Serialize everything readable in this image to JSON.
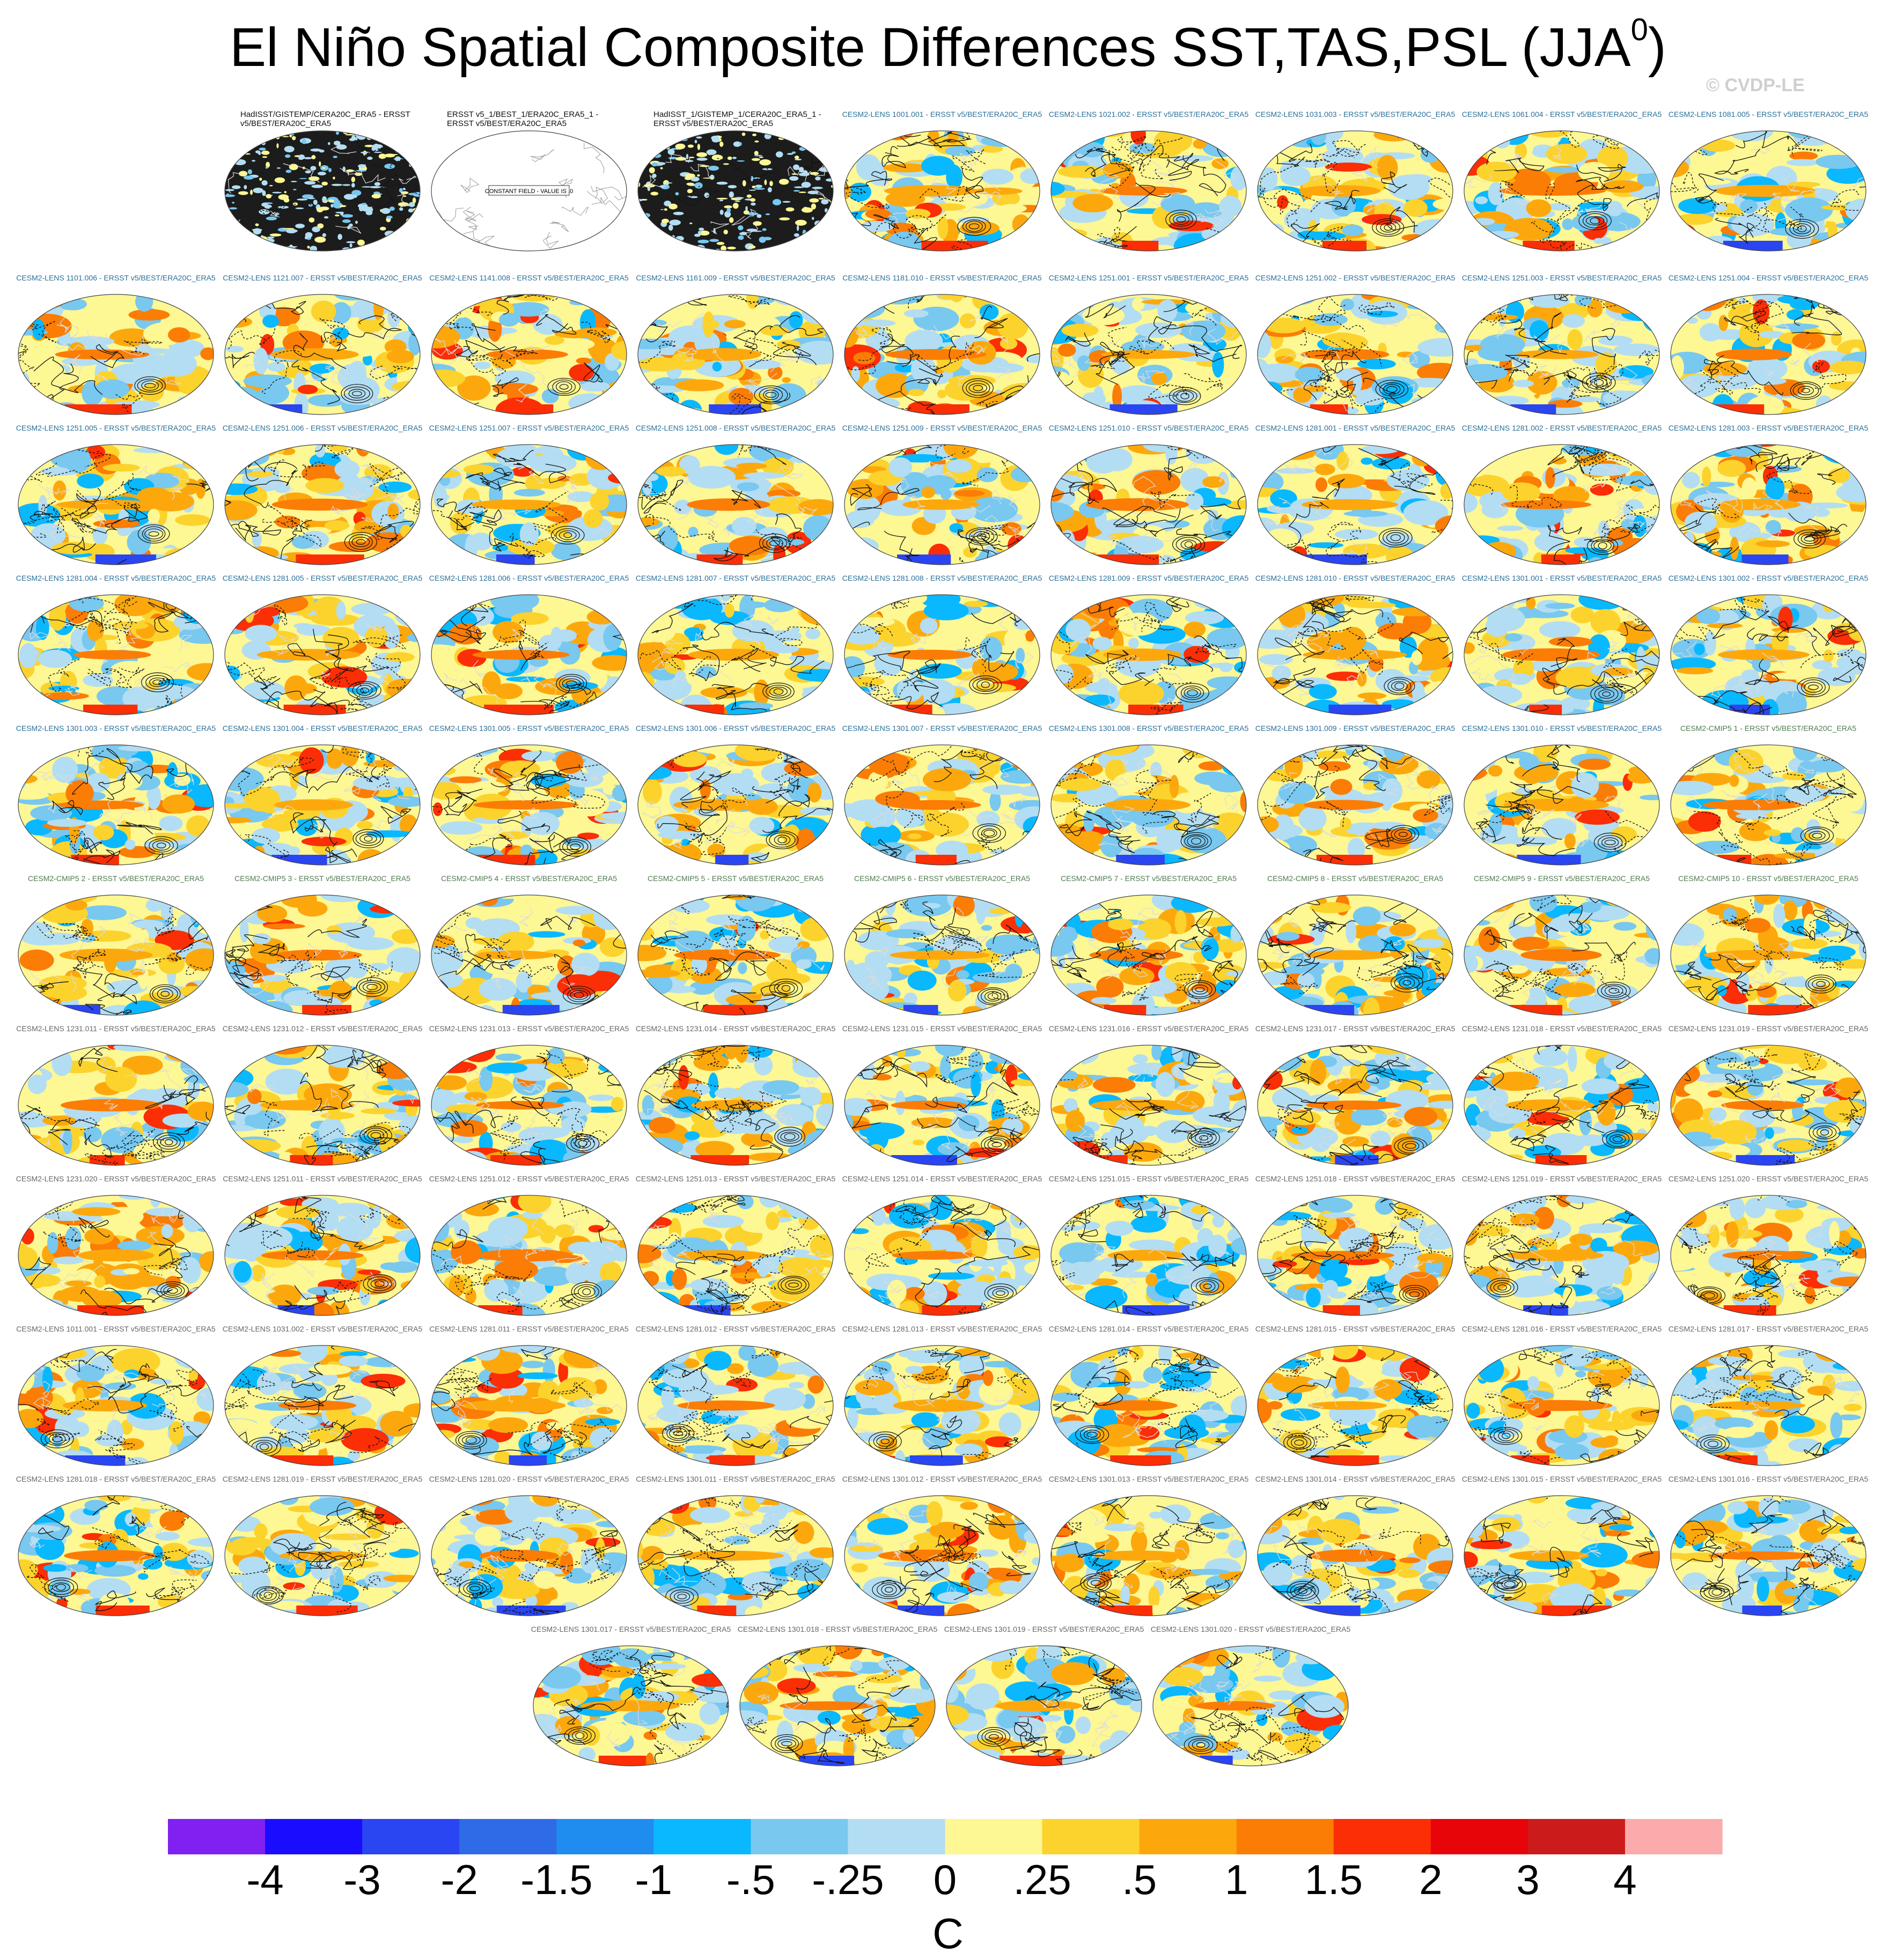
{
  "title_main": "El Niño Spatial Composite Differences SST,TAS,PSL (JJA",
  "title_sup": "0",
  "title_close": ")",
  "watermark": "© CVDP-LE",
  "colors": {
    "background": "#ffffff",
    "coast": "#d9d9d9",
    "contour": "#111111"
  },
  "chart_data": {
    "type": "heatmap",
    "description_units": "C",
    "colorbar": {
      "units": "C",
      "tick_labels": [
        "-4",
        "-3",
        "-2",
        "-1.5",
        "-1",
        "-.5",
        "-.25",
        "0",
        ".25",
        ".5",
        "1",
        "1.5",
        "2",
        "3",
        "4"
      ],
      "colors": [
        "#8021f2",
        "#1a0dff",
        "#2a45f2",
        "#2e6be6",
        "#1f8cf0",
        "#0ab8ff",
        "#78c8f0",
        "#b3ddf2",
        "#fdf794",
        "#fcd22d",
        "#fca80d",
        "#fb7d05",
        "#fb2e05",
        "#e80509",
        "#cc1b1b",
        "#fbabab"
      ]
    },
    "panels": [
      {
        "label": "HadISST/GISTEMP/CERA20C_ERA5 - ERSST v5/BEST/ERA20C_ERA5",
        "style": "obs"
      },
      {
        "label": "ERSST v5_1/BEST_1/ERA20C_ERA5_1 - ERSST v5/BEST/ERA20C_ERA5",
        "style": "obs",
        "note": "CONSTANT FIELD - VALUE IS .0"
      },
      {
        "label": "HadISST_1/GISTEMP_1/CERA20C_ERA5_1 - ERSST v5/BEST/ERA20C_ERA5",
        "style": "obs"
      },
      {
        "label": "CESM2-LENS 1001.001 - ERSST v5/BEST/ERA20C_ERA5",
        "style": "lens"
      },
      {
        "label": "CESM2-LENS 1021.002 - ERSST v5/BEST/ERA20C_ERA5",
        "style": "lens"
      },
      {
        "label": "CESM2-LENS 1031.003 - ERSST v5/BEST/ERA20C_ERA5",
        "style": "lens"
      },
      {
        "label": "CESM2-LENS 1061.004 - ERSST v5/BEST/ERA20C_ERA5",
        "style": "lens"
      },
      {
        "label": "CESM2-LENS 1081.005 - ERSST v5/BEST/ERA20C_ERA5",
        "style": "lens"
      },
      {
        "label": "CESM2-LENS 1101.006 - ERSST v5/BEST/ERA20C_ERA5",
        "style": "lens"
      },
      {
        "label": "CESM2-LENS 1121.007 - ERSST v5/BEST/ERA20C_ERA5",
        "style": "lens"
      },
      {
        "label": "CESM2-LENS 1141.008 - ERSST v5/BEST/ERA20C_ERA5",
        "style": "lens"
      },
      {
        "label": "CESM2-LENS 1161.009 - ERSST v5/BEST/ERA20C_ERA5",
        "style": "lens"
      },
      {
        "label": "CESM2-LENS 1181.010 - ERSST v5/BEST/ERA20C_ERA5",
        "style": "lens"
      },
      {
        "label": "CESM2-LENS 1251.001 - ERSST v5/BEST/ERA20C_ERA5",
        "style": "lens"
      },
      {
        "label": "CESM2-LENS 1251.002 - ERSST v5/BEST/ERA20C_ERA5",
        "style": "lens"
      },
      {
        "label": "CESM2-LENS 1251.003 - ERSST v5/BEST/ERA20C_ERA5",
        "style": "lens"
      },
      {
        "label": "CESM2-LENS 1251.004 - ERSST v5/BEST/ERA20C_ERA5",
        "style": "lens"
      },
      {
        "label": "CESM2-LENS 1251.005 - ERSST v5/BEST/ERA20C_ERA5",
        "style": "lens"
      },
      {
        "label": "CESM2-LENS 1251.006 - ERSST v5/BEST/ERA20C_ERA5",
        "style": "lens"
      },
      {
        "label": "CESM2-LENS 1251.007 - ERSST v5/BEST/ERA20C_ERA5",
        "style": "lens"
      },
      {
        "label": "CESM2-LENS 1251.008 - ERSST v5/BEST/ERA20C_ERA5",
        "style": "lens"
      },
      {
        "label": "CESM2-LENS 1251.009 - ERSST v5/BEST/ERA20C_ERA5",
        "style": "lens"
      },
      {
        "label": "CESM2-LENS 1251.010 - ERSST v5/BEST/ERA20C_ERA5",
        "style": "lens"
      },
      {
        "label": "CESM2-LENS 1281.001 - ERSST v5/BEST/ERA20C_ERA5",
        "style": "lens"
      },
      {
        "label": "CESM2-LENS 1281.002 - ERSST v5/BEST/ERA20C_ERA5",
        "style": "lens"
      },
      {
        "label": "CESM2-LENS 1281.003 - ERSST v5/BEST/ERA20C_ERA5",
        "style": "lens"
      },
      {
        "label": "CESM2-LENS 1281.004 - ERSST v5/BEST/ERA20C_ERA5",
        "style": "lens"
      },
      {
        "label": "CESM2-LENS 1281.005 - ERSST v5/BEST/ERA20C_ERA5",
        "style": "lens"
      },
      {
        "label": "CESM2-LENS 1281.006 - ERSST v5/BEST/ERA20C_ERA5",
        "style": "lens"
      },
      {
        "label": "CESM2-LENS 1281.007 - ERSST v5/BEST/ERA20C_ERA5",
        "style": "lens"
      },
      {
        "label": "CESM2-LENS 1281.008 - ERSST v5/BEST/ERA20C_ERA5",
        "style": "lens"
      },
      {
        "label": "CESM2-LENS 1281.009 - ERSST v5/BEST/ERA20C_ERA5",
        "style": "lens"
      },
      {
        "label": "CESM2-LENS 1281.010 - ERSST v5/BEST/ERA20C_ERA5",
        "style": "lens"
      },
      {
        "label": "CESM2-LENS 1301.001 - ERSST v5/BEST/ERA20C_ERA5",
        "style": "lens"
      },
      {
        "label": "CESM2-LENS 1301.002 - ERSST v5/BEST/ERA20C_ERA5",
        "style": "lens"
      },
      {
        "label": "CESM2-LENS 1301.003 - ERSST v5/BEST/ERA20C_ERA5",
        "style": "lens"
      },
      {
        "label": "CESM2-LENS 1301.004 - ERSST v5/BEST/ERA20C_ERA5",
        "style": "lens"
      },
      {
        "label": "CESM2-LENS 1301.005 - ERSST v5/BEST/ERA20C_ERA5",
        "style": "lens"
      },
      {
        "label": "CESM2-LENS 1301.006 - ERSST v5/BEST/ERA20C_ERA5",
        "style": "lens"
      },
      {
        "label": "CESM2-LENS 1301.007 - ERSST v5/BEST/ERA20C_ERA5",
        "style": "lens"
      },
      {
        "label": "CESM2-LENS 1301.008 - ERSST v5/BEST/ERA20C_ERA5",
        "style": "lens"
      },
      {
        "label": "CESM2-LENS 1301.009 - ERSST v5/BEST/ERA20C_ERA5",
        "style": "lens"
      },
      {
        "label": "CESM2-LENS 1301.010 - ERSST v5/BEST/ERA20C_ERA5",
        "style": "lens"
      },
      {
        "label": "CESM2-CMIP5 1 - ERSST v5/BEST/ERA20C_ERA5",
        "style": "cmip"
      },
      {
        "label": "CESM2-CMIP5 2 - ERSST v5/BEST/ERA20C_ERA5",
        "style": "cmip"
      },
      {
        "label": "CESM2-CMIP5 3 - ERSST v5/BEST/ERA20C_ERA5",
        "style": "cmip"
      },
      {
        "label": "CESM2-CMIP5 4 - ERSST v5/BEST/ERA20C_ERA5",
        "style": "cmip"
      },
      {
        "label": "CESM2-CMIP5 5 - ERSST v5/BEST/ERA20C_ERA5",
        "style": "cmip"
      },
      {
        "label": "CESM2-CMIP5 6 - ERSST v5/BEST/ERA20C_ERA5",
        "style": "cmip"
      },
      {
        "label": "CESM2-CMIP5 7 - ERSST v5/BEST/ERA20C_ERA5",
        "style": "cmip"
      },
      {
        "label": "CESM2-CMIP5 8 - ERSST v5/BEST/ERA20C_ERA5",
        "style": "cmip"
      },
      {
        "label": "CESM2-CMIP5 9 - ERSST v5/BEST/ERA20C_ERA5",
        "style": "cmip"
      },
      {
        "label": "CESM2-CMIP5 10 - ERSST v5/BEST/ERA20C_ERA5",
        "style": "cmip"
      },
      {
        "label": "CESM2-LENS 1231.011 - ERSST v5/BEST/ERA20C_ERA5",
        "style": "alt"
      },
      {
        "label": "CESM2-LENS 1231.012 - ERSST v5/BEST/ERA20C_ERA5",
        "style": "alt"
      },
      {
        "label": "CESM2-LENS 1231.013 - ERSST v5/BEST/ERA20C_ERA5",
        "style": "alt"
      },
      {
        "label": "CESM2-LENS 1231.014 - ERSST v5/BEST/ERA20C_ERA5",
        "style": "alt"
      },
      {
        "label": "CESM2-LENS 1231.015 - ERSST v5/BEST/ERA20C_ERA5",
        "style": "alt"
      },
      {
        "label": "CESM2-LENS 1231.016 - ERSST v5/BEST/ERA20C_ERA5",
        "style": "alt"
      },
      {
        "label": "CESM2-LENS 1231.017 - ERSST v5/BEST/ERA20C_ERA5",
        "style": "alt"
      },
      {
        "label": "CESM2-LENS 1231.018 - ERSST v5/BEST/ERA20C_ERA5",
        "style": "alt"
      },
      {
        "label": "CESM2-LENS 1231.019 - ERSST v5/BEST/ERA20C_ERA5",
        "style": "alt"
      },
      {
        "label": "CESM2-LENS 1231.020 - ERSST v5/BEST/ERA20C_ERA5",
        "style": "alt"
      },
      {
        "label": "CESM2-LENS 1251.011 - ERSST v5/BEST/ERA20C_ERA5",
        "style": "alt"
      },
      {
        "label": "CESM2-LENS 1251.012 - ERSST v5/BEST/ERA20C_ERA5",
        "style": "alt"
      },
      {
        "label": "CESM2-LENS 1251.013 - ERSST v5/BEST/ERA20C_ERA5",
        "style": "alt"
      },
      {
        "label": "CESM2-LENS 1251.014 - ERSST v5/BEST/ERA20C_ERA5",
        "style": "alt"
      },
      {
        "label": "CESM2-LENS 1251.015 - ERSST v5/BEST/ERA20C_ERA5",
        "style": "alt"
      },
      {
        "label": "CESM2-LENS 1251.018 - ERSST v5/BEST/ERA20C_ERA5",
        "style": "alt"
      },
      {
        "label": "CESM2-LENS 1251.019 - ERSST v5/BEST/ERA20C_ERA5",
        "style": "alt"
      },
      {
        "label": "CESM2-LENS 1251.020 - ERSST v5/BEST/ERA20C_ERA5",
        "style": "alt"
      },
      {
        "label": "CESM2-LENS 1011.001 - ERSST v5/BEST/ERA20C_ERA5",
        "style": "alt"
      },
      {
        "label": "CESM2-LENS 1031.002 - ERSST v5/BEST/ERA20C_ERA5",
        "style": "alt"
      },
      {
        "label": "CESM2-LENS 1281.011 - ERSST v5/BEST/ERA20C_ERA5",
        "style": "alt"
      },
      {
        "label": "CESM2-LENS 1281.012 - ERSST v5/BEST/ERA20C_ERA5",
        "style": "alt"
      },
      {
        "label": "CESM2-LENS 1281.013 - ERSST v5/BEST/ERA20C_ERA5",
        "style": "alt"
      },
      {
        "label": "CESM2-LENS 1281.014 - ERSST v5/BEST/ERA20C_ERA5",
        "style": "alt"
      },
      {
        "label": "CESM2-LENS 1281.015 - ERSST v5/BEST/ERA20C_ERA5",
        "style": "alt"
      },
      {
        "label": "CESM2-LENS 1281.016 - ERSST v5/BEST/ERA20C_ERA5",
        "style": "alt"
      },
      {
        "label": "CESM2-LENS 1281.017 - ERSST v5/BEST/ERA20C_ERA5",
        "style": "alt"
      },
      {
        "label": "CESM2-LENS 1281.018 - ERSST v5/BEST/ERA20C_ERA5",
        "style": "alt"
      },
      {
        "label": "CESM2-LENS 1281.019 - ERSST v5/BEST/ERA20C_ERA5",
        "style": "alt"
      },
      {
        "label": "CESM2-LENS 1281.020 - ERSST v5/BEST/ERA20C_ERA5",
        "style": "alt"
      },
      {
        "label": "CESM2-LENS 1301.011 - ERSST v5/BEST/ERA20C_ERA5",
        "style": "alt"
      },
      {
        "label": "CESM2-LENS 1301.012 - ERSST v5/BEST/ERA20C_ERA5",
        "style": "alt"
      },
      {
        "label": "CESM2-LENS 1301.013 - ERSST v5/BEST/ERA20C_ERA5",
        "style": "alt"
      },
      {
        "label": "CESM2-LENS 1301.014 - ERSST v5/BEST/ERA20C_ERA5",
        "style": "alt"
      },
      {
        "label": "CESM2-LENS 1301.015 - ERSST v5/BEST/ERA20C_ERA5",
        "style": "alt"
      },
      {
        "label": "CESM2-LENS 1301.016 - ERSST v5/BEST/ERA20C_ERA5",
        "style": "alt"
      },
      {
        "label": "CESM2-LENS 1301.017 - ERSST v5/BEST/ERA20C_ERA5",
        "style": "alt"
      },
      {
        "label": "CESM2-LENS 1301.018 - ERSST v5/BEST/ERA20C_ERA5",
        "style": "alt"
      },
      {
        "label": "CESM2-LENS 1301.019 - ERSST v5/BEST/ERA20C_ERA5",
        "style": "alt"
      },
      {
        "label": "CESM2-LENS 1301.020 - ERSST v5/BEST/ERA20C_ERA5",
        "style": "alt"
      }
    ]
  }
}
